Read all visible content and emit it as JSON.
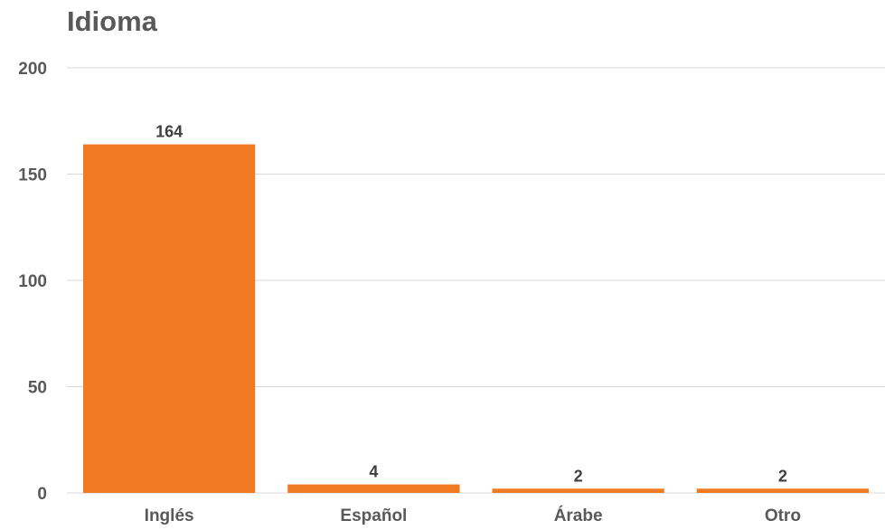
{
  "chart_data": {
    "type": "bar",
    "title": "Idioma",
    "categories": [
      "Inglés",
      "Español",
      "Árabe",
      "Otro"
    ],
    "values": [
      164,
      4,
      2,
      2
    ],
    "data_labels": [
      "164",
      "4",
      "2",
      "2"
    ],
    "ylim": [
      0,
      200
    ],
    "yticks": [
      0,
      50,
      100,
      150,
      200
    ],
    "ytick_labels": [
      "0",
      "50",
      "100",
      "150",
      "200"
    ],
    "xlabel": "",
    "ylabel": "",
    "grid": true,
    "legend": "none",
    "bar_color": "#F07A22",
    "grid_color": "#D9D9D9",
    "text_color": "#595959"
  }
}
